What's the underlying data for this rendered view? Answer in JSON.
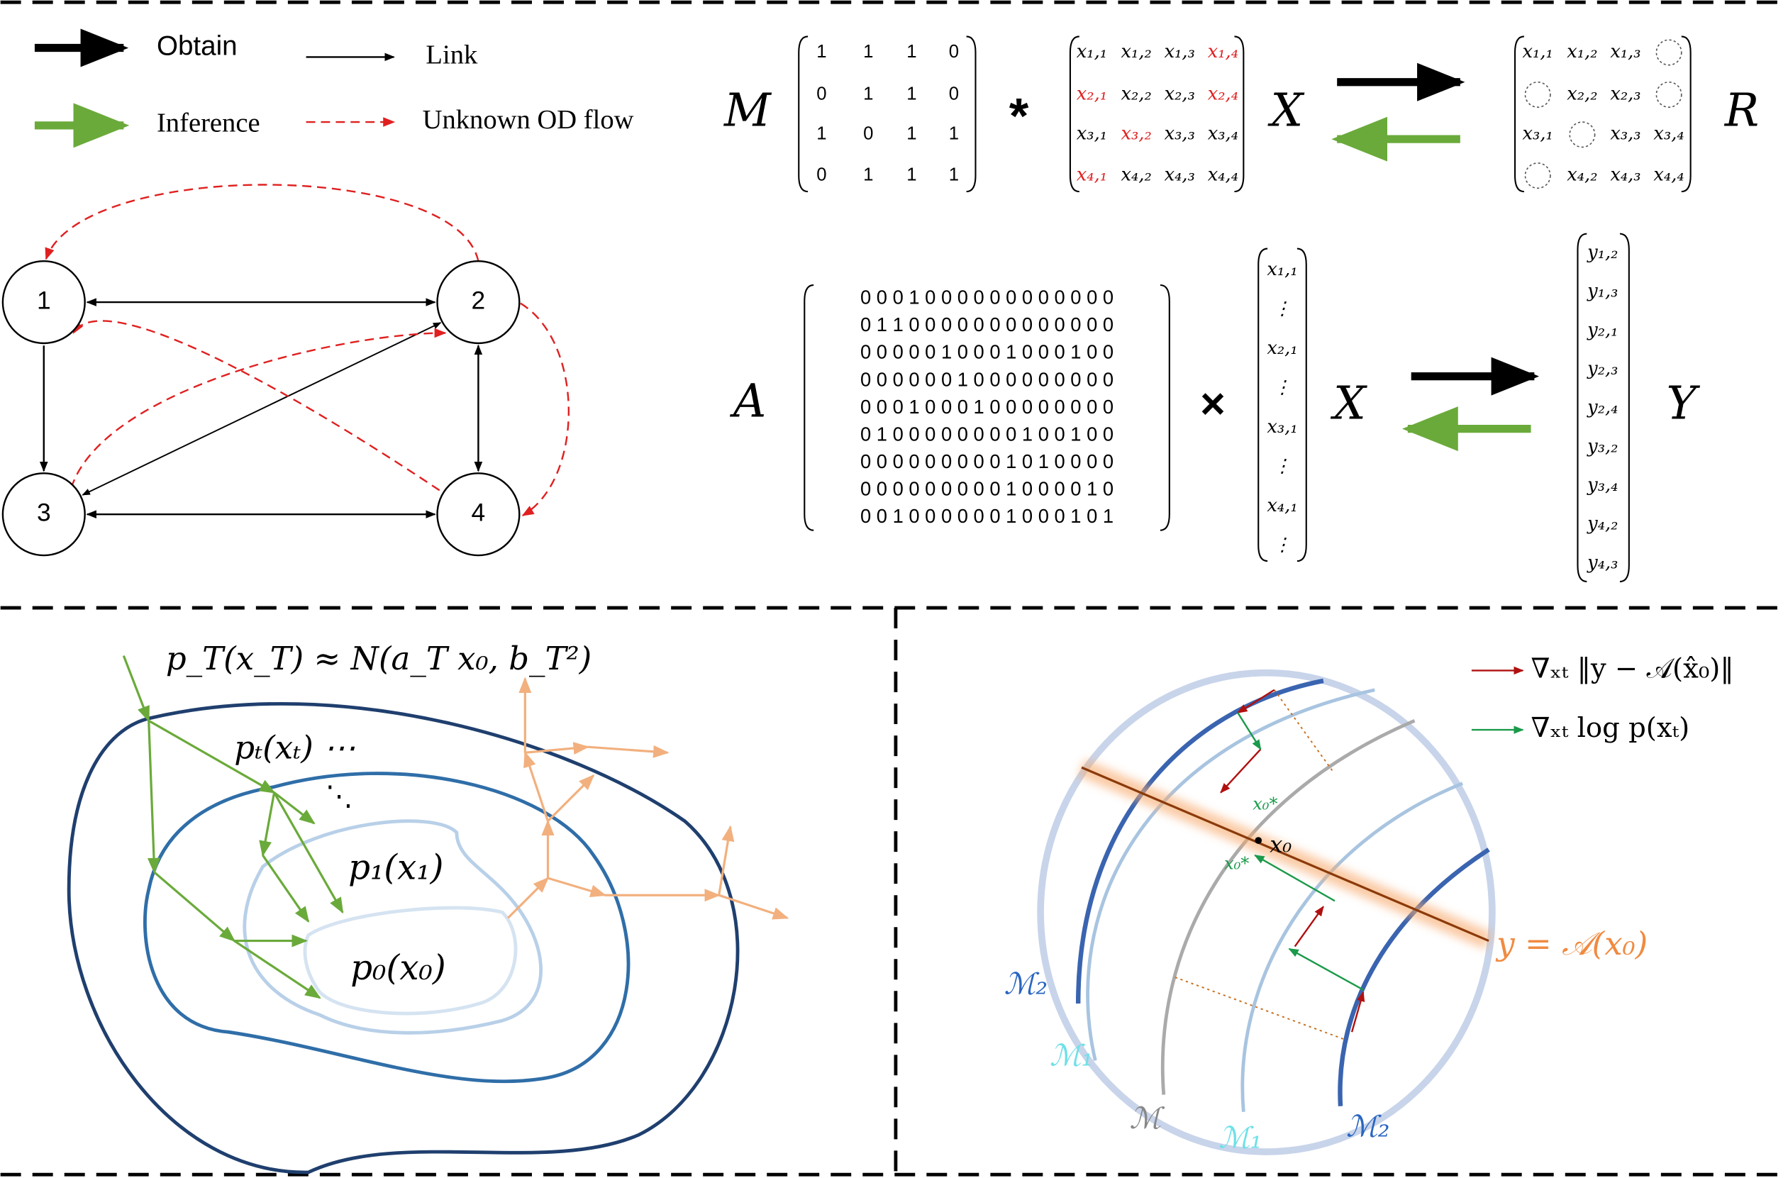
{
  "legend": {
    "obtain": "Obtain",
    "link": "Link",
    "inference": "Inference",
    "unknown": "Unknown OD flow"
  },
  "network": {
    "nodes": [
      "1",
      "2",
      "3",
      "4"
    ]
  },
  "mask_equation": {
    "M_label": "M",
    "M": [
      [
        1,
        1,
        1,
        0
      ],
      [
        0,
        1,
        1,
        0
      ],
      [
        1,
        0,
        1,
        1
      ],
      [
        0,
        1,
        1,
        1
      ]
    ],
    "operator": "*",
    "X_label": "X",
    "X": [
      [
        "x₁,₁",
        "x₁,₂",
        "x₁,₃",
        "x₁,₄"
      ],
      [
        "x₂,₁",
        "x₂,₂",
        "x₂,₃",
        "x₂,₄"
      ],
      [
        "x₃,₁",
        "x₃,₂",
        "x₃,₃",
        "x₃,₄"
      ],
      [
        "x₄,₁",
        "x₄,₂",
        "x₄,₃",
        "x₄,₄"
      ]
    ],
    "X_colors": [
      [
        "#000",
        "#000",
        "#000",
        "#e02020"
      ],
      [
        "#e02020",
        "#000",
        "#000",
        "#e02020"
      ],
      [
        "#000",
        "#e02020",
        "#000",
        "#000"
      ],
      [
        "#e02020",
        "#000",
        "#000",
        "#000"
      ]
    ],
    "R_label": "R",
    "R": [
      [
        "x₁,₁",
        "x₁,₂",
        "x₁,₃",
        null
      ],
      [
        null,
        "x₂,₂",
        "x₂,₃",
        null
      ],
      [
        "x₃,₁",
        null,
        "x₃,₃",
        "x₃,₄"
      ],
      [
        null,
        "x₄,₂",
        "x₄,₃",
        "x₄,₄"
      ]
    ]
  },
  "link_equation": {
    "A_label": "A",
    "A": [
      "0 0 0 1 0 0 0 0 0 0 0 0 0 0 0 0",
      "0 1 1 0 0 0 0 0 0 0 0 0 0 0 0 0",
      "0 0 0 0 0 1 0 0 0 1 0 0 0 1 0 0",
      "0 0 0 0 0 0 1 0 0 0 0 0 0 0 0 0",
      "0 0 0 1 0 0 0 1 0 0 0 0 0 0 0 0",
      "0 1 0 0 0 0 0 0 0 0 1 0 0 1 0 0",
      "0 0 0 0 0 0 0 0 0 1 0 1 0 0 0 0",
      "0 0 0 0 0 0 0 0 0 1 0 0 0 0 1 0",
      "0 0 1 0 0 0 0 0 0 1 0 0 0 1 0 1"
    ],
    "operator": "×",
    "X_label": "X",
    "X": [
      "x₁,₁",
      "⋮",
      "x₂,₁",
      "⋮",
      "x₃,₁",
      "⋮",
      "x₄,₁",
      "⋮"
    ],
    "Y_label": "Y",
    "Y": [
      "y₁,₂",
      "y₁,₃",
      "y₂,₁",
      "y₂,₃",
      "y₂,₄",
      "y₃,₂",
      "y₃,₄",
      "y₄,₂",
      "y₄,₃"
    ]
  },
  "diffusion": {
    "pT": "p_T(x_T) ≈ N(a_T x₀, b_T²)",
    "pt": "pₜ(xₜ) ⋯",
    "dots": "⋱",
    "p1": "p₁(x₁)",
    "p0": "p₀(x₀)"
  },
  "manifold": {
    "legend_red": "∇ₓₜ ‖y − 𝒜(x̂₀)‖",
    "legend_green": "∇ₓₜ log p(xₜ)",
    "x0_star_top": "x₀*",
    "x0": "x₀",
    "x0_star_bottom": "x₀*",
    "constraint": "y = 𝒜(x₀)",
    "labels": [
      "ℳ₂",
      "ℳ₁",
      "ℳ",
      "ℳ₁",
      "ℳ₂"
    ]
  }
}
